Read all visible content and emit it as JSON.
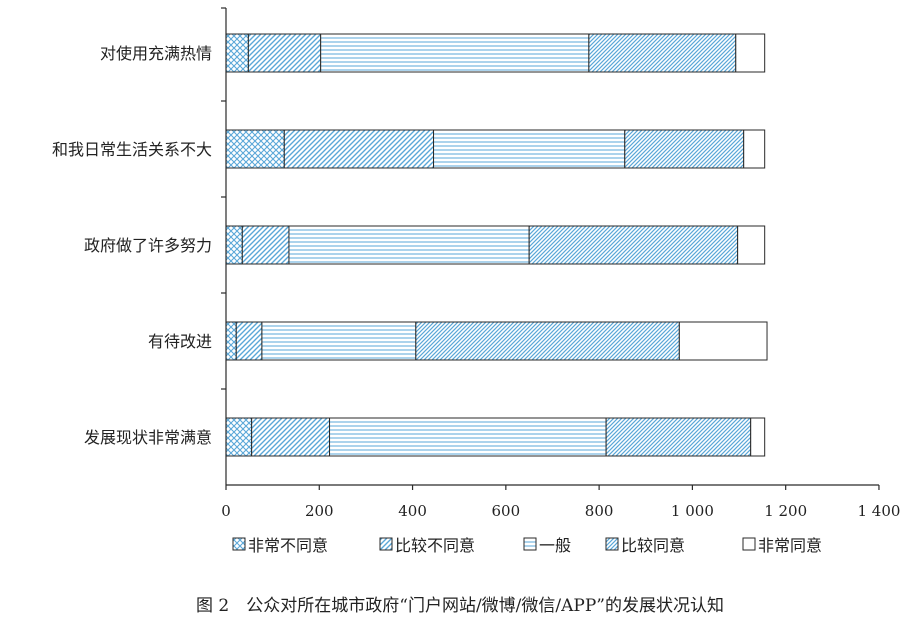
{
  "chart_data": {
    "type": "bar",
    "orientation": "horizontal",
    "stacked": true,
    "categories": [
      "对使用充满热情",
      "和我日常生活关系不大",
      "政府做了许多努力",
      "有待改进",
      "发展现状非常满意"
    ],
    "series": [
      {
        "name": "非常不同意",
        "values": [
          48,
          125,
          35,
          22,
          55
        ]
      },
      {
        "name": "比较不同意",
        "values": [
          155,
          320,
          100,
          55,
          167
        ]
      },
      {
        "name": "一般",
        "values": [
          575,
          410,
          515,
          330,
          593
        ]
      },
      {
        "name": "比较同意",
        "values": [
          315,
          255,
          447,
          565,
          310
        ]
      },
      {
        "name": "非常同意",
        "values": [
          62,
          45,
          58,
          188,
          30
        ]
      }
    ],
    "xlim": [
      0,
      1400
    ],
    "xticks": [
      0,
      200,
      400,
      600,
      800,
      1000,
      1200,
      1400
    ],
    "xtick_labels": [
      "0",
      "200",
      "400",
      "600",
      "800",
      "1 000",
      "1 200",
      "1 400"
    ],
    "legend_position": "bottom",
    "grid": false
  },
  "caption": "图 2　公众对所在城市政府“门户网站/微博/微信/APP”的发展状况认知",
  "colors": {
    "fill": "#5aa7d8",
    "stroke": "#2a2a2a",
    "background": "#ffffff"
  }
}
